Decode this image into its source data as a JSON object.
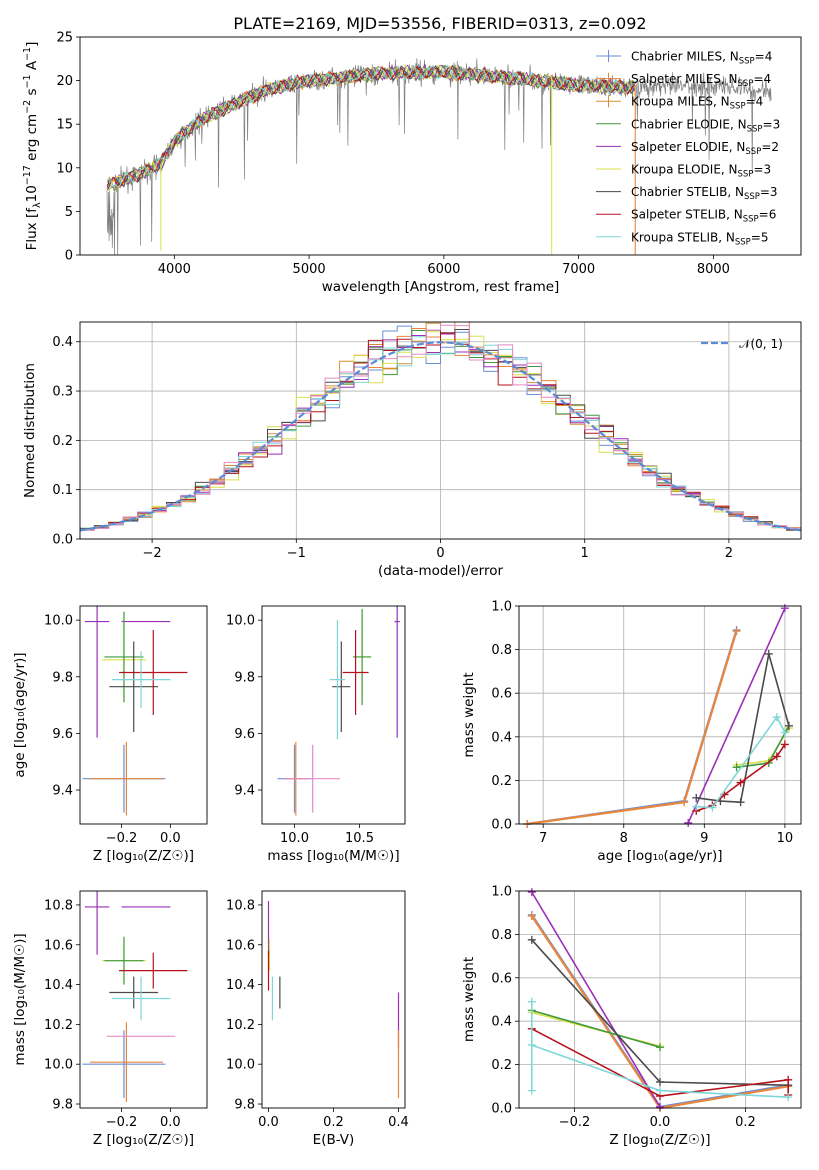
{
  "figure": {
    "title": "PLATE=2169, MJD=53556, FIBERID=0313, z=0.092"
  },
  "legend_series": [
    {
      "name": "Chabrier MILES, N_SSP=4",
      "label": "Chabrier MILES, N",
      "sub": "SSP",
      "tail": "=4",
      "color": "#6a8fd6"
    },
    {
      "name": "Salpeter MILES, N_SSP=4",
      "label": "Salpeter MILES, N",
      "sub": "SSP",
      "tail": "=4",
      "color": "#e8863c"
    },
    {
      "name": "Kroupa MILES, N_SSP=4",
      "label": "Kroupa MILES, N",
      "sub": "SSP",
      "tail": "=4",
      "color": "#d98e2f"
    },
    {
      "name": "Chabrier ELODIE, N_SSP=3",
      "label": "Chabrier ELODIE, N",
      "sub": "SSP",
      "tail": "=3",
      "color": "#3f9a3f"
    },
    {
      "name": "Salpeter ELODIE, N_SSP=2",
      "label": "Salpeter ELODIE, N",
      "sub": "SSP",
      "tail": "=2",
      "color": "#9b2fb8"
    },
    {
      "name": "Kroupa ELODIE, N_SSP=3",
      "label": "Kroupa ELODIE, N",
      "sub": "SSP",
      "tail": "=3",
      "color": "#d8e04a"
    },
    {
      "name": "Chabrier STELIB, N_SSP=3",
      "label": "Chabrier STELIB, N",
      "sub": "SSP",
      "tail": "=3",
      "color": "#4a4a4a"
    },
    {
      "name": "Salpeter STELIB, N_SSP=6",
      "label": "Salpeter STELIB, N",
      "sub": "SSP",
      "tail": "=6",
      "color": "#b5121b"
    },
    {
      "name": "Kroupa STELIB, N_SSP=5",
      "label": "Kroupa STELIB, N",
      "sub": "SSP",
      "tail": "=5",
      "color": "#7fd6d9"
    }
  ],
  "colors": {
    "data_spectrum": "#7f7f7f",
    "grid": "#b0b0b0",
    "normal_curve": "#5b8ad6",
    "pink": "#e88bc4",
    "lime": "#8bc43a"
  },
  "chart_data": [
    {
      "type": "line",
      "panel": "spectrum",
      "xlabel": "wavelength [Angstrom, rest frame]",
      "ylabel_parts": [
        "Flux [f",
        "λ",
        "10",
        "−17",
        " erg cm",
        "−2",
        " s",
        "−1",
        " A",
        "−1",
        "]"
      ],
      "xlim": [
        3300,
        8650
      ],
      "ylim": [
        0,
        25
      ],
      "xticks": [
        4000,
        5000,
        6000,
        7000,
        8000
      ],
      "yticks": [
        0,
        5,
        10,
        15,
        20,
        25
      ],
      "model_range": [
        3500,
        7420
      ],
      "data_range": [
        3500,
        8430
      ],
      "continuum_knots": [
        [
          3500,
          8
        ],
        [
          3700,
          9
        ],
        [
          3900,
          10.5
        ],
        [
          4000,
          13
        ],
        [
          4200,
          15.5
        ],
        [
          4400,
          17
        ],
        [
          4700,
          19
        ],
        [
          5000,
          20
        ],
        [
          5500,
          20.8
        ],
        [
          6000,
          21
        ],
        [
          6500,
          20.3
        ],
        [
          7000,
          19.5
        ],
        [
          7400,
          19.2
        ],
        [
          8000,
          19.5
        ],
        [
          8430,
          18.8
        ]
      ],
      "legend_position": "upper right"
    },
    {
      "type": "histogram",
      "panel": "residuals",
      "xlabel": "(data-model)/error",
      "ylabel": "Normed distribution",
      "xlim": [
        -2.5,
        2.5
      ],
      "ylim": [
        0,
        0.44
      ],
      "xticks": [
        -2,
        -1,
        0,
        1,
        2
      ],
      "yticks": [
        0.0,
        0.1,
        0.2,
        0.3,
        0.4
      ],
      "bin_width": 0.1,
      "curve_label": "𝒩(0, 1)",
      "legend_position": "upper right"
    },
    {
      "type": "scatter",
      "panel": "age_vs_Z",
      "xlabel": "Z [log₁₀(Z/Z☉)]",
      "ylabel": "age  [log₁₀(age/yr)]",
      "xlim": [
        -0.37,
        0.15
      ],
      "ylim": [
        9.28,
        10.05
      ],
      "xticks": [
        -0.2,
        0.0
      ],
      "yticks": [
        9.4,
        9.6,
        9.8,
        10.0
      ],
      "points": [
        {
          "series": "Chabrier MILES",
          "x": -0.19,
          "y": 9.44,
          "xerr": 0.17,
          "yerr": 0.12
        },
        {
          "series": "Salpeter MILES",
          "x": -0.18,
          "y": 9.44,
          "xerr": 0.15,
          "yerr": 0.13
        },
        {
          "series": "Salpeter ELODIE",
          "x": -0.3,
          "y": 9.995,
          "xerr": 0.05,
          "yerr": 0.41
        },
        {
          "series": "Salpeter ELODIE b",
          "x": -0.1,
          "y": 9.995,
          "xerr": 0.1,
          "yerr": 0
        },
        {
          "series": "Kroupa ELODIE",
          "x": -0.19,
          "y": 9.86,
          "xerr": 0.09,
          "yerr": 0.15
        },
        {
          "series": "Chabrier ELODIE",
          "x": -0.19,
          "y": 9.87,
          "xerr": 0.08,
          "yerr": 0.16
        },
        {
          "series": "Chabrier STELIB",
          "x": -0.15,
          "y": 9.765,
          "xerr": 0.1,
          "yerr": 0.16
        },
        {
          "series": "Salpeter STELIB",
          "x": -0.07,
          "y": 9.815,
          "xerr": 0.14,
          "yerr": 0.15
        },
        {
          "series": "Kroupa STELIB",
          "x": -0.12,
          "y": 9.79,
          "xerr": 0.12,
          "yerr": 0.1
        }
      ]
    },
    {
      "type": "scatter",
      "panel": "age_vs_mass",
      "xlabel": "mass [log₁₀(M/M☉)]",
      "ylabel": "",
      "xlim": [
        9.75,
        10.85
      ],
      "ylim": [
        9.28,
        10.05
      ],
      "xticks": [
        10.0,
        10.5
      ],
      "yticks": [
        9.4,
        9.6,
        9.8,
        10.0
      ],
      "points": [
        {
          "series": "Chabrier MILES",
          "x": 10.0,
          "y": 9.44,
          "xerr": 0.13,
          "yerr": 0.12
        },
        {
          "series": "Salpeter MILES",
          "x": 10.01,
          "y": 9.44,
          "xerr": 0.08,
          "yerr": 0.13
        },
        {
          "series": "pink",
          "x": 10.14,
          "y": 9.44,
          "xerr": 0.21,
          "yerr": 0.12
        },
        {
          "series": "Salpeter ELODIE",
          "x": 10.79,
          "y": 9.995,
          "xerr": 0.02,
          "yerr": 0.41
        },
        {
          "series": "Kroupa ELODIE",
          "x": 10.52,
          "y": 9.87,
          "xerr": 0.06,
          "yerr": 0.15
        },
        {
          "series": "Chabrier ELODIE",
          "x": 10.52,
          "y": 9.87,
          "xerr": 0.07,
          "yerr": 0.17
        },
        {
          "series": "Chabrier STELIB",
          "x": 10.36,
          "y": 9.765,
          "xerr": 0.07,
          "yerr": 0.16
        },
        {
          "series": "Salpeter STELIB",
          "x": 10.47,
          "y": 9.815,
          "xerr": 0.1,
          "yerr": 0.15
        },
        {
          "series": "Kroupa STELIB",
          "x": 10.33,
          "y": 9.79,
          "xerr": 0.06,
          "yerr": 0.21
        }
      ]
    },
    {
      "type": "line",
      "panel": "weight_vs_age",
      "xlabel": "age  [log₁₀(age/yr)]",
      "ylabel": "mass weight",
      "xlim": [
        6.7,
        10.2
      ],
      "ylim": [
        0,
        1.0
      ],
      "xticks": [
        7,
        8,
        9,
        10
      ],
      "yticks": [
        0.0,
        0.2,
        0.4,
        0.6,
        0.8,
        1.0
      ],
      "series": [
        {
          "name": "Chabrier MILES",
          "points": [
            [
              6.8,
              0
            ],
            [
              8.75,
              0.105
            ],
            [
              9.4,
              0.89
            ]
          ]
        },
        {
          "name": "Salpeter MILES",
          "points": [
            [
              6.8,
              0
            ],
            [
              8.75,
              0.1
            ],
            [
              9.4,
              0.885
            ]
          ]
        },
        {
          "name": "Salpeter ELODIE",
          "points": [
            [
              8.8,
              0.005
            ],
            [
              10.0,
              0.99
            ]
          ]
        },
        {
          "name": "Kroupa ELODIE",
          "points": [
            [
              9.4,
              0.27
            ],
            [
              9.8,
              0.29
            ],
            [
              10.05,
              0.44
            ]
          ]
        },
        {
          "name": "Chabrier ELODIE",
          "points": [
            [
              9.4,
              0.26
            ],
            [
              9.8,
              0.28
            ],
            [
              10.05,
              0.45
            ]
          ]
        },
        {
          "name": "Chabrier STELIB",
          "points": [
            [
              8.9,
              0.12
            ],
            [
              9.2,
              0.105
            ],
            [
              9.45,
              0.1
            ],
            [
              9.8,
              0.78
            ],
            [
              10.05,
              0.45
            ]
          ]
        },
        {
          "name": "Salpeter STELIB",
          "points": [
            [
              8.9,
              0.06
            ],
            [
              9.1,
              0.085
            ],
            [
              9.25,
              0.135
            ],
            [
              9.45,
              0.19
            ],
            [
              9.9,
              0.31
            ],
            [
              10.0,
              0.365
            ]
          ]
        },
        {
          "name": "Kroupa STELIB",
          "points": [
            [
              8.9,
              0.08
            ],
            [
              9.1,
              0.075
            ],
            [
              9.9,
              0.49
            ],
            [
              10.0,
              0.42
            ]
          ]
        }
      ]
    },
    {
      "type": "scatter",
      "panel": "mass_vs_Z",
      "xlabel": "Z [log₁₀(Z/Z☉)]",
      "ylabel": "mass [log₁₀(M/M☉)]",
      "xlim": [
        -0.37,
        0.15
      ],
      "ylim": [
        9.78,
        10.87
      ],
      "xticks": [
        -0.2,
        0.0
      ],
      "yticks": [
        9.8,
        10.0,
        10.2,
        10.4,
        10.6,
        10.8
      ],
      "points": [
        {
          "series": "Chabrier MILES",
          "x": -0.19,
          "y": 10.0,
          "xerr": 0.17,
          "yerr": 0.17
        },
        {
          "series": "Salpeter MILES",
          "x": -0.18,
          "y": 10.01,
          "xerr": 0.15,
          "yerr": 0.2
        },
        {
          "series": "pink",
          "x": -0.12,
          "y": 10.14,
          "xerr": 0.14,
          "yerr": 0.0
        },
        {
          "series": "Salpeter ELODIE",
          "x": -0.3,
          "y": 10.79,
          "xerr": 0.05,
          "yerr": 0.24
        },
        {
          "series": "Salpeter ELODIE b",
          "x": -0.1,
          "y": 10.79,
          "xerr": 0.1,
          "yerr": 0
        },
        {
          "series": "Kroupa ELODIE",
          "x": -0.19,
          "y": 10.52,
          "xerr": 0.09,
          "yerr": 0.11
        },
        {
          "series": "Chabrier ELODIE",
          "x": -0.19,
          "y": 10.52,
          "xerr": 0.08,
          "yerr": 0.12
        },
        {
          "series": "Chabrier STELIB",
          "x": -0.15,
          "y": 10.36,
          "xerr": 0.1,
          "yerr": 0.08
        },
        {
          "series": "Salpeter STELIB",
          "x": -0.07,
          "y": 10.47,
          "xerr": 0.14,
          "yerr": 0.09
        },
        {
          "series": "Kroupa STELIB",
          "x": -0.12,
          "y": 10.33,
          "xerr": 0.12,
          "yerr": 0.11
        }
      ]
    },
    {
      "type": "scatter",
      "panel": "mass_vs_ebv",
      "xlabel": "E(B-V)",
      "ylabel": "",
      "xlim": [
        -0.02,
        0.42
      ],
      "ylim": [
        9.78,
        10.87
      ],
      "xticks": [
        0.0,
        0.2,
        0.4
      ],
      "yticks": [
        9.8,
        10.0,
        10.2,
        10.4,
        10.6,
        10.8
      ],
      "points": [
        {
          "series": "Salpeter ELODIE",
          "x": 0.0,
          "y": 10.68,
          "xerr": 0,
          "yerr": 0.14
        },
        {
          "series": "Kroupa ELODIE",
          "x": 0.003,
          "y": 10.55,
          "xerr": 0,
          "yerr": 0.08
        },
        {
          "series": "Salpeter STELIB",
          "x": 0.0,
          "y": 10.47,
          "xerr": 0,
          "yerr": 0.1
        },
        {
          "series": "Chabrier STELIB",
          "x": 0.035,
          "y": 10.36,
          "xerr": 0,
          "yerr": 0.08
        },
        {
          "series": "Kroupa STELIB",
          "x": 0.012,
          "y": 10.33,
          "xerr": 0,
          "yerr": 0.11
        },
        {
          "series": "Salpeter ELODIE c",
          "x": 0.4,
          "y": 10.22,
          "xerr": 0,
          "yerr": 0.14
        },
        {
          "series": "Salpeter MILES",
          "x": 0.4,
          "y": 10.0,
          "xerr": 0,
          "yerr": 0.17
        }
      ]
    },
    {
      "type": "line",
      "panel": "weight_vs_Z",
      "xlabel": "Z [log₁₀(Z/Z☉)]",
      "ylabel": "mass weight",
      "xlim": [
        -0.33,
        0.33
      ],
      "ylim": [
        0,
        1.0
      ],
      "xticks": [
        -0.2,
        0.0,
        0.2
      ],
      "yticks": [
        0.0,
        0.2,
        0.4,
        0.6,
        0.8,
        1.0
      ],
      "series": [
        {
          "name": "Chabrier MILES",
          "points": [
            [
              -0.3,
              0.89
            ],
            [
              0.0,
              0.005
            ],
            [
              0.3,
              0.105
            ]
          ]
        },
        {
          "name": "Salpeter MILES",
          "points": [
            [
              -0.3,
              0.885
            ],
            [
              0.0,
              0.0
            ],
            [
              0.3,
              0.1
            ]
          ]
        },
        {
          "name": "Salpeter ELODIE",
          "points": [
            [
              -0.3,
              0.995
            ],
            [
              0.0,
              0.005
            ]
          ]
        },
        {
          "name": "Kroupa ELODIE",
          "points": [
            [
              -0.3,
              0.44
            ],
            [
              0.0,
              0.285
            ]
          ]
        },
        {
          "name": "Chabrier ELODIE",
          "points": [
            [
              -0.3,
              0.45
            ],
            [
              0.0,
              0.28
            ]
          ]
        },
        {
          "name": "Chabrier STELIB",
          "points": [
            [
              -0.3,
              0.775
            ],
            [
              0.0,
              0.12
            ],
            [
              0.3,
              0.105
            ]
          ]
        },
        {
          "name": "Salpeter STELIB",
          "points": [
            [
              -0.3,
              0.365
            ],
            [
              0.0,
              0.055
            ],
            [
              0.3,
              0.13
            ],
            [
              0.3,
              0.06
            ]
          ]
        },
        {
          "name": "Kroupa STELIB",
          "points": [
            [
              -0.3,
              0.49
            ],
            [
              -0.3,
              0.08
            ],
            [
              -0.3,
              0.29
            ],
            [
              0.0,
              0.08
            ],
            [
              0.3,
              0.05
            ]
          ]
        }
      ]
    }
  ]
}
